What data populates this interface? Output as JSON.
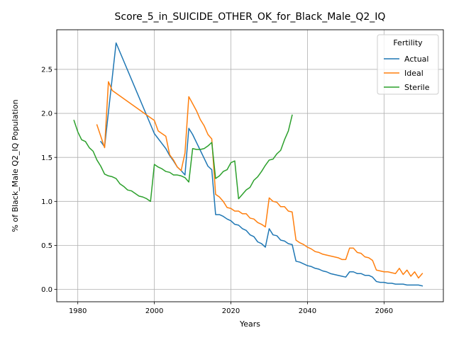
{
  "chart_data": {
    "type": "line",
    "title": "Score_5_in_SUICIDE_OTHER_OK_for_Black_Male_Q2_IQ",
    "xlabel": "Years",
    "ylabel": "% of Black_Male Q2_IQ Population",
    "xlim": [
      1974.5,
      2075.5
    ],
    "ylim": [
      -0.14,
      2.95
    ],
    "xticks": [
      1980,
      2000,
      2020,
      2040,
      2060
    ],
    "yticks": [
      0.0,
      0.5,
      1.0,
      1.5,
      2.0,
      2.5
    ],
    "grid": true,
    "legend": {
      "title": "Fertility",
      "position": "top-right"
    },
    "series": [
      {
        "name": "Actual",
        "color": "#1f77b4",
        "points": [
          [
            1986,
            1.68
          ],
          [
            1987,
            1.62
          ],
          [
            1990,
            2.8
          ],
          [
            2000,
            1.77
          ],
          [
            2003,
            1.6
          ],
          [
            2004,
            1.52
          ],
          [
            2005,
            1.46
          ],
          [
            2006,
            1.39
          ],
          [
            2007,
            1.35
          ],
          [
            2008,
            1.3
          ],
          [
            2009,
            1.83
          ],
          [
            2010,
            1.76
          ],
          [
            2011,
            1.67
          ],
          [
            2012,
            1.58
          ],
          [
            2013,
            1.49
          ],
          [
            2014,
            1.4
          ],
          [
            2015,
            1.36
          ],
          [
            2016,
            0.85
          ],
          [
            2017,
            0.85
          ],
          [
            2018,
            0.83
          ],
          [
            2019,
            0.8
          ],
          [
            2020,
            0.78
          ],
          [
            2021,
            0.74
          ],
          [
            2022,
            0.73
          ],
          [
            2023,
            0.69
          ],
          [
            2024,
            0.67
          ],
          [
            2025,
            0.62
          ],
          [
            2026,
            0.6
          ],
          [
            2027,
            0.54
          ],
          [
            2028,
            0.52
          ],
          [
            2029,
            0.48
          ],
          [
            2030,
            0.69
          ],
          [
            2031,
            0.62
          ],
          [
            2032,
            0.61
          ],
          [
            2033,
            0.56
          ],
          [
            2034,
            0.55
          ],
          [
            2035,
            0.52
          ],
          [
            2036,
            0.51
          ],
          [
            2037,
            0.32
          ],
          [
            2038,
            0.31
          ],
          [
            2039,
            0.29
          ],
          [
            2040,
            0.27
          ],
          [
            2041,
            0.26
          ],
          [
            2042,
            0.24
          ],
          [
            2043,
            0.23
          ],
          [
            2044,
            0.21
          ],
          [
            2045,
            0.2
          ],
          [
            2046,
            0.18
          ],
          [
            2047,
            0.17
          ],
          [
            2048,
            0.16
          ],
          [
            2049,
            0.15
          ],
          [
            2050,
            0.14
          ],
          [
            2051,
            0.2
          ],
          [
            2052,
            0.2
          ],
          [
            2053,
            0.18
          ],
          [
            2054,
            0.18
          ],
          [
            2055,
            0.16
          ],
          [
            2056,
            0.16
          ],
          [
            2057,
            0.14
          ],
          [
            2058,
            0.09
          ],
          [
            2059,
            0.08
          ],
          [
            2060,
            0.08
          ],
          [
            2061,
            0.07
          ],
          [
            2062,
            0.07
          ],
          [
            2063,
            0.06
          ],
          [
            2064,
            0.06
          ],
          [
            2065,
            0.06
          ],
          [
            2066,
            0.05
          ],
          [
            2067,
            0.05
          ],
          [
            2068,
            0.05
          ],
          [
            2069,
            0.05
          ],
          [
            2070,
            0.04
          ]
        ]
      },
      {
        "name": "Ideal",
        "color": "#ff7f0e",
        "points": [
          [
            1985,
            1.87
          ],
          [
            1987,
            1.61
          ],
          [
            1988,
            2.36
          ],
          [
            1989,
            2.26
          ],
          [
            1999,
            1.95
          ],
          [
            2000,
            1.92
          ],
          [
            2001,
            1.8
          ],
          [
            2003,
            1.74
          ],
          [
            2004,
            1.53
          ],
          [
            2005,
            1.47
          ],
          [
            2006,
            1.39
          ],
          [
            2007,
            1.35
          ],
          [
            2008,
            1.55
          ],
          [
            2009,
            2.19
          ],
          [
            2010,
            2.11
          ],
          [
            2011,
            2.03
          ],
          [
            2012,
            1.93
          ],
          [
            2013,
            1.86
          ],
          [
            2014,
            1.76
          ],
          [
            2015,
            1.71
          ],
          [
            2016,
            1.08
          ],
          [
            2017,
            1.05
          ],
          [
            2018,
            1.0
          ],
          [
            2019,
            0.93
          ],
          [
            2020,
            0.92
          ],
          [
            2021,
            0.89
          ],
          [
            2022,
            0.89
          ],
          [
            2023,
            0.86
          ],
          [
            2024,
            0.86
          ],
          [
            2025,
            0.81
          ],
          [
            2026,
            0.8
          ],
          [
            2027,
            0.76
          ],
          [
            2028,
            0.74
          ],
          [
            2029,
            0.71
          ],
          [
            2030,
            1.04
          ],
          [
            2031,
            1.0
          ],
          [
            2032,
            0.99
          ],
          [
            2033,
            0.94
          ],
          [
            2034,
            0.94
          ],
          [
            2035,
            0.89
          ],
          [
            2036,
            0.88
          ],
          [
            2037,
            0.56
          ],
          [
            2038,
            0.53
          ],
          [
            2039,
            0.51
          ],
          [
            2040,
            0.48
          ],
          [
            2041,
            0.46
          ],
          [
            2042,
            0.43
          ],
          [
            2043,
            0.42
          ],
          [
            2044,
            0.4
          ],
          [
            2045,
            0.39
          ],
          [
            2046,
            0.38
          ],
          [
            2047,
            0.37
          ],
          [
            2048,
            0.36
          ],
          [
            2049,
            0.34
          ],
          [
            2050,
            0.34
          ],
          [
            2051,
            0.47
          ],
          [
            2052,
            0.47
          ],
          [
            2053,
            0.42
          ],
          [
            2054,
            0.41
          ],
          [
            2055,
            0.37
          ],
          [
            2056,
            0.36
          ],
          [
            2057,
            0.33
          ],
          [
            2058,
            0.22
          ],
          [
            2059,
            0.21
          ],
          [
            2060,
            0.2
          ],
          [
            2061,
            0.2
          ],
          [
            2062,
            0.19
          ],
          [
            2063,
            0.18
          ],
          [
            2064,
            0.24
          ],
          [
            2065,
            0.17
          ],
          [
            2066,
            0.22
          ],
          [
            2067,
            0.15
          ],
          [
            2068,
            0.2
          ],
          [
            2069,
            0.13
          ],
          [
            2070,
            0.18
          ]
        ]
      },
      {
        "name": "Sterile",
        "color": "#2ca02c",
        "points": [
          [
            1979,
            1.92
          ],
          [
            1980,
            1.79
          ],
          [
            1981,
            1.7
          ],
          [
            1982,
            1.68
          ],
          [
            1983,
            1.61
          ],
          [
            1984,
            1.57
          ],
          [
            1985,
            1.47
          ],
          [
            1986,
            1.4
          ],
          [
            1987,
            1.31
          ],
          [
            1988,
            1.29
          ],
          [
            1989,
            1.28
          ],
          [
            1990,
            1.26
          ],
          [
            1991,
            1.2
          ],
          [
            1992,
            1.17
          ],
          [
            1993,
            1.13
          ],
          [
            1994,
            1.12
          ],
          [
            1995,
            1.09
          ],
          [
            1996,
            1.06
          ],
          [
            1997,
            1.05
          ],
          [
            1998,
            1.03
          ],
          [
            1999,
            1.0
          ],
          [
            2000,
            1.42
          ],
          [
            2001,
            1.39
          ],
          [
            2002,
            1.37
          ],
          [
            2003,
            1.34
          ],
          [
            2004,
            1.33
          ],
          [
            2005,
            1.3
          ],
          [
            2006,
            1.3
          ],
          [
            2007,
            1.29
          ],
          [
            2008,
            1.27
          ],
          [
            2009,
            1.22
          ],
          [
            2010,
            1.6
          ],
          [
            2011,
            1.59
          ],
          [
            2012,
            1.59
          ],
          [
            2013,
            1.6
          ],
          [
            2014,
            1.63
          ],
          [
            2015,
            1.67
          ],
          [
            2016,
            1.26
          ],
          [
            2017,
            1.29
          ],
          [
            2018,
            1.34
          ],
          [
            2019,
            1.36
          ],
          [
            2020,
            1.44
          ],
          [
            2021,
            1.46
          ],
          [
            2022,
            1.03
          ],
          [
            2023,
            1.08
          ],
          [
            2024,
            1.13
          ],
          [
            2025,
            1.16
          ],
          [
            2026,
            1.24
          ],
          [
            2027,
            1.28
          ],
          [
            2028,
            1.34
          ],
          [
            2029,
            1.41
          ],
          [
            2030,
            1.47
          ],
          [
            2031,
            1.48
          ],
          [
            2032,
            1.54
          ],
          [
            2033,
            1.58
          ],
          [
            2034,
            1.7
          ],
          [
            2035,
            1.8
          ],
          [
            2036,
            1.98
          ]
        ]
      }
    ]
  }
}
